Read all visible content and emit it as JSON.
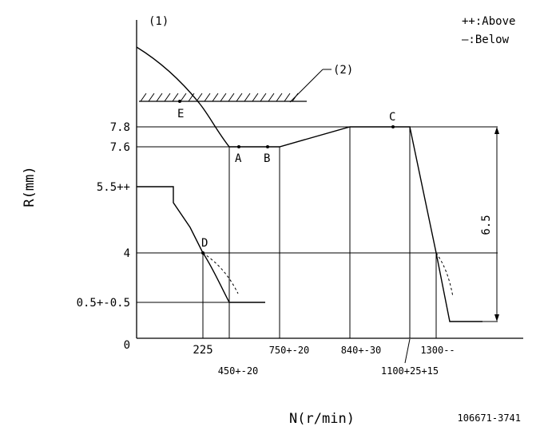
{
  "figure": {
    "ref1": "(1)",
    "ref2": "(2)",
    "legend": {
      "above": "++:Above",
      "below": "—:Below"
    },
    "y_axis_title": "R(mm)",
    "x_axis_title": "N(r/min)",
    "drawing_number": "106671-3741",
    "y_ticks": [
      "7.8",
      "7.6",
      "5.5++",
      "4",
      "0.5+-0.5",
      "0"
    ],
    "x_ticks": [
      "225",
      "450+-20",
      "750+-20",
      "840+-30",
      "1100+25+15",
      "1300--"
    ],
    "points": [
      "A",
      "B",
      "C",
      "D",
      "E"
    ],
    "dimension": "6.5"
  }
}
